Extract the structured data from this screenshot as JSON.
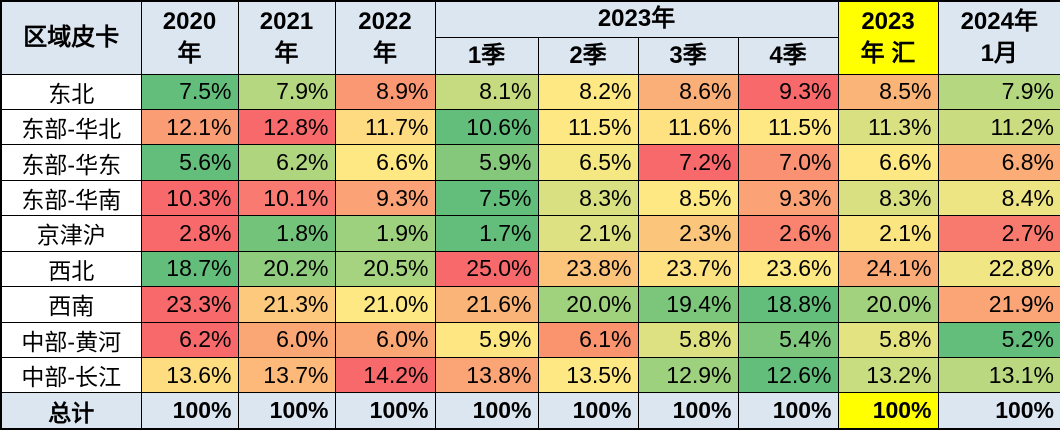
{
  "header": {
    "corner": "区域皮卡",
    "y2020": "2020\n年",
    "y2021": "2021\n年",
    "y2022": "2022\n年",
    "group2023": "2023年",
    "q1": "1季",
    "q2": "2季",
    "q3": "3季",
    "q4": "4季",
    "sum2023": "2023\n年 汇",
    "jan2024": "2024年\n1月"
  },
  "colors": {
    "header_bg": "#DCE6F1",
    "highlight_yellow": "#FFFF00",
    "border": "#000000",
    "row_label_bg": "#FFFFFF",
    "total_row_bg": "#DCE6F1",
    "scale_min_green": "#63BE7B",
    "scale_mid_yellow": "#FFEB84",
    "scale_max_red": "#F8696B"
  },
  "chart_data": {
    "type": "heatmap_table",
    "title": "区域皮卡",
    "unit": "%",
    "columns": [
      "2020年",
      "2021年",
      "2022年",
      "2023年1季",
      "2023年2季",
      "2023年3季",
      "2023年4季",
      "2023年汇",
      "2024年1月"
    ],
    "rows": [
      {
        "label": "东北",
        "values": [
          "7.5%",
          "7.9%",
          "8.9%",
          "8.1%",
          "8.2%",
          "8.6%",
          "9.3%",
          "8.5%",
          "7.9%"
        ],
        "colors": [
          "#63BE7B",
          "#B5D77F",
          "#F99872",
          "#C6DB80",
          "#FEE883",
          "#FBAF78",
          "#F8696B",
          "#FBB478",
          "#B5D77F"
        ]
      },
      {
        "label": "东部-华北",
        "values": [
          "12.1%",
          "12.8%",
          "11.7%",
          "10.6%",
          "11.5%",
          "11.6%",
          "11.5%",
          "11.3%",
          "11.2%"
        ],
        "colors": [
          "#FA9D74",
          "#F8696B",
          "#FEDB80",
          "#63BE7B",
          "#FEE883",
          "#FEE181",
          "#FEE883",
          "#D8E081",
          "#C9DC80"
        ]
      },
      {
        "label": "东部-华东",
        "values": [
          "5.6%",
          "6.2%",
          "6.6%",
          "5.9%",
          "6.5%",
          "7.2%",
          "7.0%",
          "6.6%",
          "6.8%"
        ],
        "colors": [
          "#63BE7B",
          "#AFD57F",
          "#FEE883",
          "#85C87C",
          "#F5E883",
          "#F8696B",
          "#FA9173",
          "#FEE883",
          "#FBAC77"
        ]
      },
      {
        "label": "东部-华南",
        "values": [
          "10.3%",
          "10.1%",
          "9.3%",
          "7.5%",
          "8.3%",
          "8.5%",
          "9.3%",
          "8.3%",
          "8.4%"
        ],
        "colors": [
          "#F8696B",
          "#F87A70",
          "#FBA376",
          "#63BE7B",
          "#D8E081",
          "#FEE883",
          "#FBA376",
          "#D8E081",
          "#EDE583"
        ]
      },
      {
        "label": "京津沪",
        "values": [
          "2.8%",
          "1.8%",
          "1.9%",
          "1.7%",
          "2.1%",
          "2.3%",
          "2.6%",
          "2.1%",
          "2.7%"
        ],
        "colors": [
          "#F8696B",
          "#74C37B",
          "#9DD17E",
          "#63BE7B",
          "#DDE181",
          "#FBC67C",
          "#F9836F",
          "#FBE580",
          "#F87A6E"
        ]
      },
      {
        "label": "西北",
        "values": [
          "18.7%",
          "20.2%",
          "20.5%",
          "25.0%",
          "23.8%",
          "23.7%",
          "23.6%",
          "24.1%",
          "22.8%"
        ],
        "colors": [
          "#63BE7B",
          "#8FCC7D",
          "#A5D37F",
          "#F8696B",
          "#FCC37B",
          "#FEE181",
          "#FEE883",
          "#FBAB77",
          "#F0E683"
        ]
      },
      {
        "label": "西南",
        "values": [
          "23.3%",
          "21.3%",
          "21.0%",
          "21.6%",
          "20.0%",
          "19.4%",
          "18.8%",
          "20.0%",
          "21.9%"
        ],
        "colors": [
          "#F8696B",
          "#FDC97D",
          "#FEE883",
          "#FBB478",
          "#A0D27E",
          "#7CC67C",
          "#63BE7B",
          "#A2D27E",
          "#FBA476"
        ]
      },
      {
        "label": "中部-黄河",
        "values": [
          "6.2%",
          "6.0%",
          "6.0%",
          "5.9%",
          "6.1%",
          "5.8%",
          "5.4%",
          "5.8%",
          "5.2%"
        ],
        "colors": [
          "#F8696B",
          "#FBA675",
          "#FBA675",
          "#FEE782",
          "#F9946F",
          "#DDE181",
          "#7FC77C",
          "#E4E382",
          "#63BE7B"
        ]
      },
      {
        "label": "中部-长江",
        "values": [
          "13.6%",
          "13.7%",
          "14.2%",
          "13.8%",
          "13.5%",
          "12.9%",
          "12.6%",
          "13.2%",
          "13.1%"
        ],
        "colors": [
          "#FEDC80",
          "#FCB97A",
          "#F8696B",
          "#FBA576",
          "#FEE883",
          "#9ED17E",
          "#63BE7B",
          "#C8DC80",
          "#B9D87F"
        ]
      },
      {
        "label": "总计",
        "total": true,
        "values": [
          "100%",
          "100%",
          "100%",
          "100%",
          "100%",
          "100%",
          "100%",
          "100%",
          "100%"
        ],
        "colors": [
          "#DCE6F1",
          "#DCE6F1",
          "#DCE6F1",
          "#DCE6F1",
          "#DCE6F1",
          "#DCE6F1",
          "#DCE6F1",
          "#FFFF00",
          "#DCE6F1"
        ]
      }
    ]
  }
}
